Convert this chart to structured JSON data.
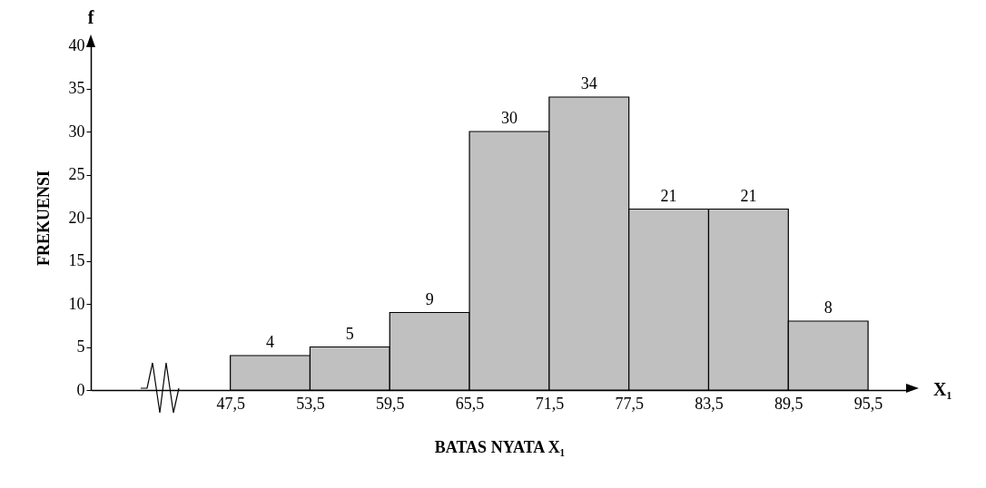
{
  "chart_data": {
    "type": "histogram",
    "xlabel": "BATAS NYATA X₁",
    "ylabel": "FREKUENSI",
    "annotations": [
      "f",
      "X₁"
    ],
    "bins": [
      47.5,
      53.5,
      59.5,
      65.5,
      71.5,
      77.5,
      83.5,
      89.5,
      95.5
    ],
    "values": [
      4,
      5,
      9,
      30,
      34,
      21,
      21,
      8
    ],
    "color": "#c0c0c0",
    "xlim": [
      37,
      98.5
    ],
    "xticks": [
      {
        "value": 47.5,
        "label": "47,5"
      },
      {
        "value": 53.5,
        "label": "53,5"
      },
      {
        "value": 59.5,
        "label": "59,5"
      },
      {
        "value": 65.5,
        "label": "65,5"
      },
      {
        "value": 71.5,
        "label": "71,5"
      },
      {
        "value": 77.5,
        "label": "77,5"
      },
      {
        "value": 83.5,
        "label": "83,5"
      },
      {
        "value": 89.5,
        "label": "89,5"
      },
      {
        "value": 95.5,
        "label": "95,5"
      }
    ],
    "ylim": [
      0,
      40
    ],
    "yticks": [
      0,
      5,
      10,
      15,
      20,
      25,
      30,
      35,
      40
    ],
    "data_labels": true,
    "grid": false
  }
}
